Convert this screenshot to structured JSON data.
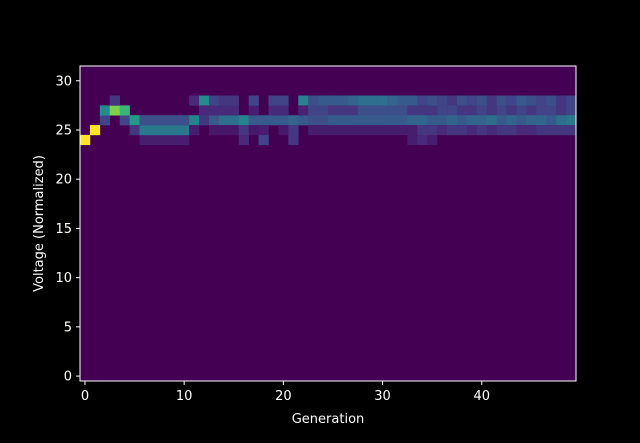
{
  "chart_data": {
    "type": "heatmap",
    "title": "",
    "xlabel": "Generation",
    "ylabel": "Voltage (Normalized)",
    "xlim": [
      -0.5,
      49.5
    ],
    "ylim": [
      -0.5,
      31.5
    ],
    "xticks": [
      0,
      10,
      20,
      30,
      40
    ],
    "yticks": [
      0,
      5,
      10,
      15,
      20,
      25,
      30
    ],
    "colormap": "viridis",
    "background_color": "#000000",
    "frame_color": "#ffffff",
    "scale_max": 1.0,
    "columns": [
      {
        "gen": 0,
        "cells": [
          [
            24,
            1.0
          ]
        ]
      },
      {
        "gen": 1,
        "cells": [
          [
            25,
            1.0
          ]
        ]
      },
      {
        "gen": 2,
        "cells": [
          [
            26,
            0.25
          ],
          [
            27,
            0.6
          ]
        ]
      },
      {
        "gen": 3,
        "cells": [
          [
            27,
            0.85
          ],
          [
            28,
            0.2
          ]
        ]
      },
      {
        "gen": 4,
        "cells": [
          [
            26,
            0.25
          ],
          [
            27,
            0.75
          ]
        ]
      },
      {
        "gen": 5,
        "cells": [
          [
            26,
            0.65
          ],
          [
            25,
            0.2
          ]
        ]
      },
      {
        "gen": 6,
        "cells": [
          [
            24,
            0.1
          ],
          [
            25,
            0.5
          ],
          [
            26,
            0.3
          ]
        ]
      },
      {
        "gen": 7,
        "cells": [
          [
            24,
            0.1
          ],
          [
            25,
            0.5
          ],
          [
            26,
            0.3
          ]
        ]
      },
      {
        "gen": 8,
        "cells": [
          [
            24,
            0.1
          ],
          [
            25,
            0.5
          ],
          [
            26,
            0.3
          ]
        ]
      },
      {
        "gen": 9,
        "cells": [
          [
            24,
            0.1
          ],
          [
            25,
            0.5
          ],
          [
            26,
            0.3
          ]
        ]
      },
      {
        "gen": 10,
        "cells": [
          [
            24,
            0.1
          ],
          [
            25,
            0.5
          ],
          [
            26,
            0.3
          ]
        ]
      },
      {
        "gen": 11,
        "cells": [
          [
            26,
            0.55
          ],
          [
            28,
            0.15
          ],
          [
            25,
            0.1
          ]
        ]
      },
      {
        "gen": 12,
        "cells": [
          [
            28,
            0.6
          ],
          [
            26,
            0.2
          ],
          [
            27,
            0.15
          ]
        ]
      },
      {
        "gen": 13,
        "cells": [
          [
            26,
            0.35
          ],
          [
            27,
            0.15
          ],
          [
            28,
            0.25
          ],
          [
            25,
            0.08
          ]
        ]
      },
      {
        "gen": 14,
        "cells": [
          [
            26,
            0.45
          ],
          [
            27,
            0.15
          ],
          [
            28,
            0.2
          ],
          [
            25,
            0.08
          ]
        ]
      },
      {
        "gen": 15,
        "cells": [
          [
            26,
            0.45
          ],
          [
            27,
            0.15
          ],
          [
            28,
            0.2
          ],
          [
            25,
            0.08
          ]
        ]
      },
      {
        "gen": 16,
        "cells": [
          [
            26,
            0.55
          ],
          [
            25,
            0.2
          ],
          [
            24,
            0.15
          ]
        ]
      },
      {
        "gen": 17,
        "cells": [
          [
            26,
            0.35
          ],
          [
            27,
            0.1
          ],
          [
            28,
            0.25
          ],
          [
            25,
            0.08
          ]
        ]
      },
      {
        "gen": 18,
        "cells": [
          [
            26,
            0.35
          ],
          [
            24,
            0.25
          ],
          [
            25,
            0.1
          ]
        ]
      },
      {
        "gen": 19,
        "cells": [
          [
            26,
            0.35
          ],
          [
            27,
            0.15
          ],
          [
            28,
            0.25
          ]
        ]
      },
      {
        "gen": 20,
        "cells": [
          [
            26,
            0.35
          ],
          [
            27,
            0.15
          ],
          [
            28,
            0.25
          ],
          [
            25,
            0.08
          ]
        ]
      },
      {
        "gen": 21,
        "cells": [
          [
            26,
            0.4
          ],
          [
            24,
            0.2
          ],
          [
            25,
            0.2
          ]
        ]
      },
      {
        "gen": 22,
        "cells": [
          [
            28,
            0.55
          ],
          [
            26,
            0.35
          ],
          [
            27,
            0.12
          ]
        ]
      },
      {
        "gen": 23,
        "cells": [
          [
            28,
            0.3
          ],
          [
            27,
            0.25
          ],
          [
            26,
            0.3
          ],
          [
            25,
            0.1
          ]
        ]
      },
      {
        "gen": 24,
        "cells": [
          [
            28,
            0.35
          ],
          [
            27,
            0.25
          ],
          [
            26,
            0.3
          ],
          [
            25,
            0.1
          ]
        ]
      },
      {
        "gen": 25,
        "cells": [
          [
            28,
            0.35
          ],
          [
            27,
            0.2
          ],
          [
            26,
            0.35
          ],
          [
            25,
            0.1
          ]
        ]
      },
      {
        "gen": 26,
        "cells": [
          [
            28,
            0.35
          ],
          [
            27,
            0.2
          ],
          [
            26,
            0.35
          ],
          [
            25,
            0.1
          ]
        ]
      },
      {
        "gen": 27,
        "cells": [
          [
            28,
            0.4
          ],
          [
            27,
            0.2
          ],
          [
            26,
            0.35
          ],
          [
            25,
            0.1
          ]
        ]
      },
      {
        "gen": 28,
        "cells": [
          [
            28,
            0.45
          ],
          [
            27,
            0.3
          ],
          [
            26,
            0.35
          ],
          [
            25,
            0.1
          ]
        ]
      },
      {
        "gen": 29,
        "cells": [
          [
            28,
            0.45
          ],
          [
            27,
            0.3
          ],
          [
            26,
            0.35
          ],
          [
            25,
            0.1
          ]
        ]
      },
      {
        "gen": 30,
        "cells": [
          [
            28,
            0.45
          ],
          [
            27,
            0.3
          ],
          [
            26,
            0.35
          ],
          [
            25,
            0.1
          ]
        ]
      },
      {
        "gen": 31,
        "cells": [
          [
            28,
            0.4
          ],
          [
            27,
            0.3
          ],
          [
            26,
            0.35
          ],
          [
            25,
            0.1
          ]
        ]
      },
      {
        "gen": 32,
        "cells": [
          [
            28,
            0.35
          ],
          [
            27,
            0.3
          ],
          [
            26,
            0.35
          ],
          [
            25,
            0.1
          ]
        ]
      },
      {
        "gen": 33,
        "cells": [
          [
            28,
            0.35
          ],
          [
            27,
            0.2
          ],
          [
            26,
            0.4
          ],
          [
            25,
            0.1
          ],
          [
            24,
            0.1
          ]
        ]
      },
      {
        "gen": 34,
        "cells": [
          [
            28,
            0.25
          ],
          [
            27,
            0.2
          ],
          [
            26,
            0.4
          ],
          [
            25,
            0.2
          ],
          [
            24,
            0.15
          ]
        ]
      },
      {
        "gen": 35,
        "cells": [
          [
            28,
            0.3
          ],
          [
            27,
            0.2
          ],
          [
            26,
            0.35
          ],
          [
            25,
            0.2
          ],
          [
            24,
            0.1
          ]
        ]
      },
      {
        "gen": 36,
        "cells": [
          [
            28,
            0.25
          ],
          [
            27,
            0.25
          ],
          [
            26,
            0.35
          ],
          [
            25,
            0.15
          ]
        ]
      },
      {
        "gen": 37,
        "cells": [
          [
            28,
            0.2
          ],
          [
            27,
            0.25
          ],
          [
            26,
            0.4
          ],
          [
            25,
            0.2
          ]
        ]
      },
      {
        "gen": 38,
        "cells": [
          [
            28,
            0.3
          ],
          [
            27,
            0.2
          ],
          [
            26,
            0.35
          ],
          [
            25,
            0.2
          ]
        ]
      },
      {
        "gen": 39,
        "cells": [
          [
            28,
            0.25
          ],
          [
            27,
            0.2
          ],
          [
            26,
            0.4
          ],
          [
            25,
            0.15
          ]
        ]
      },
      {
        "gen": 40,
        "cells": [
          [
            28,
            0.3
          ],
          [
            27,
            0.25
          ],
          [
            26,
            0.4
          ],
          [
            25,
            0.2
          ]
        ]
      },
      {
        "gen": 41,
        "cells": [
          [
            28,
            0.2
          ],
          [
            27,
            0.2
          ],
          [
            26,
            0.45
          ],
          [
            25,
            0.15
          ]
        ]
      },
      {
        "gen": 42,
        "cells": [
          [
            28,
            0.3
          ],
          [
            27,
            0.25
          ],
          [
            26,
            0.35
          ],
          [
            25,
            0.2
          ]
        ]
      },
      {
        "gen": 43,
        "cells": [
          [
            28,
            0.25
          ],
          [
            27,
            0.2
          ],
          [
            26,
            0.4
          ],
          [
            25,
            0.2
          ]
        ]
      },
      {
        "gen": 44,
        "cells": [
          [
            28,
            0.35
          ],
          [
            27,
            0.25
          ],
          [
            26,
            0.35
          ],
          [
            25,
            0.15
          ]
        ]
      },
      {
        "gen": 45,
        "cells": [
          [
            28,
            0.3
          ],
          [
            27,
            0.2
          ],
          [
            26,
            0.4
          ],
          [
            25,
            0.15
          ]
        ]
      },
      {
        "gen": 46,
        "cells": [
          [
            28,
            0.25
          ],
          [
            27,
            0.25
          ],
          [
            26,
            0.4
          ],
          [
            25,
            0.2
          ]
        ]
      },
      {
        "gen": 47,
        "cells": [
          [
            28,
            0.3
          ],
          [
            27,
            0.25
          ],
          [
            26,
            0.35
          ],
          [
            25,
            0.2
          ]
        ]
      },
      {
        "gen": 48,
        "cells": [
          [
            28,
            0.2
          ],
          [
            27,
            0.2
          ],
          [
            26,
            0.45
          ],
          [
            25,
            0.2
          ]
        ]
      },
      {
        "gen": 49,
        "cells": [
          [
            28,
            0.25
          ],
          [
            27,
            0.25
          ],
          [
            26,
            0.5
          ],
          [
            25,
            0.2
          ]
        ]
      }
    ]
  }
}
